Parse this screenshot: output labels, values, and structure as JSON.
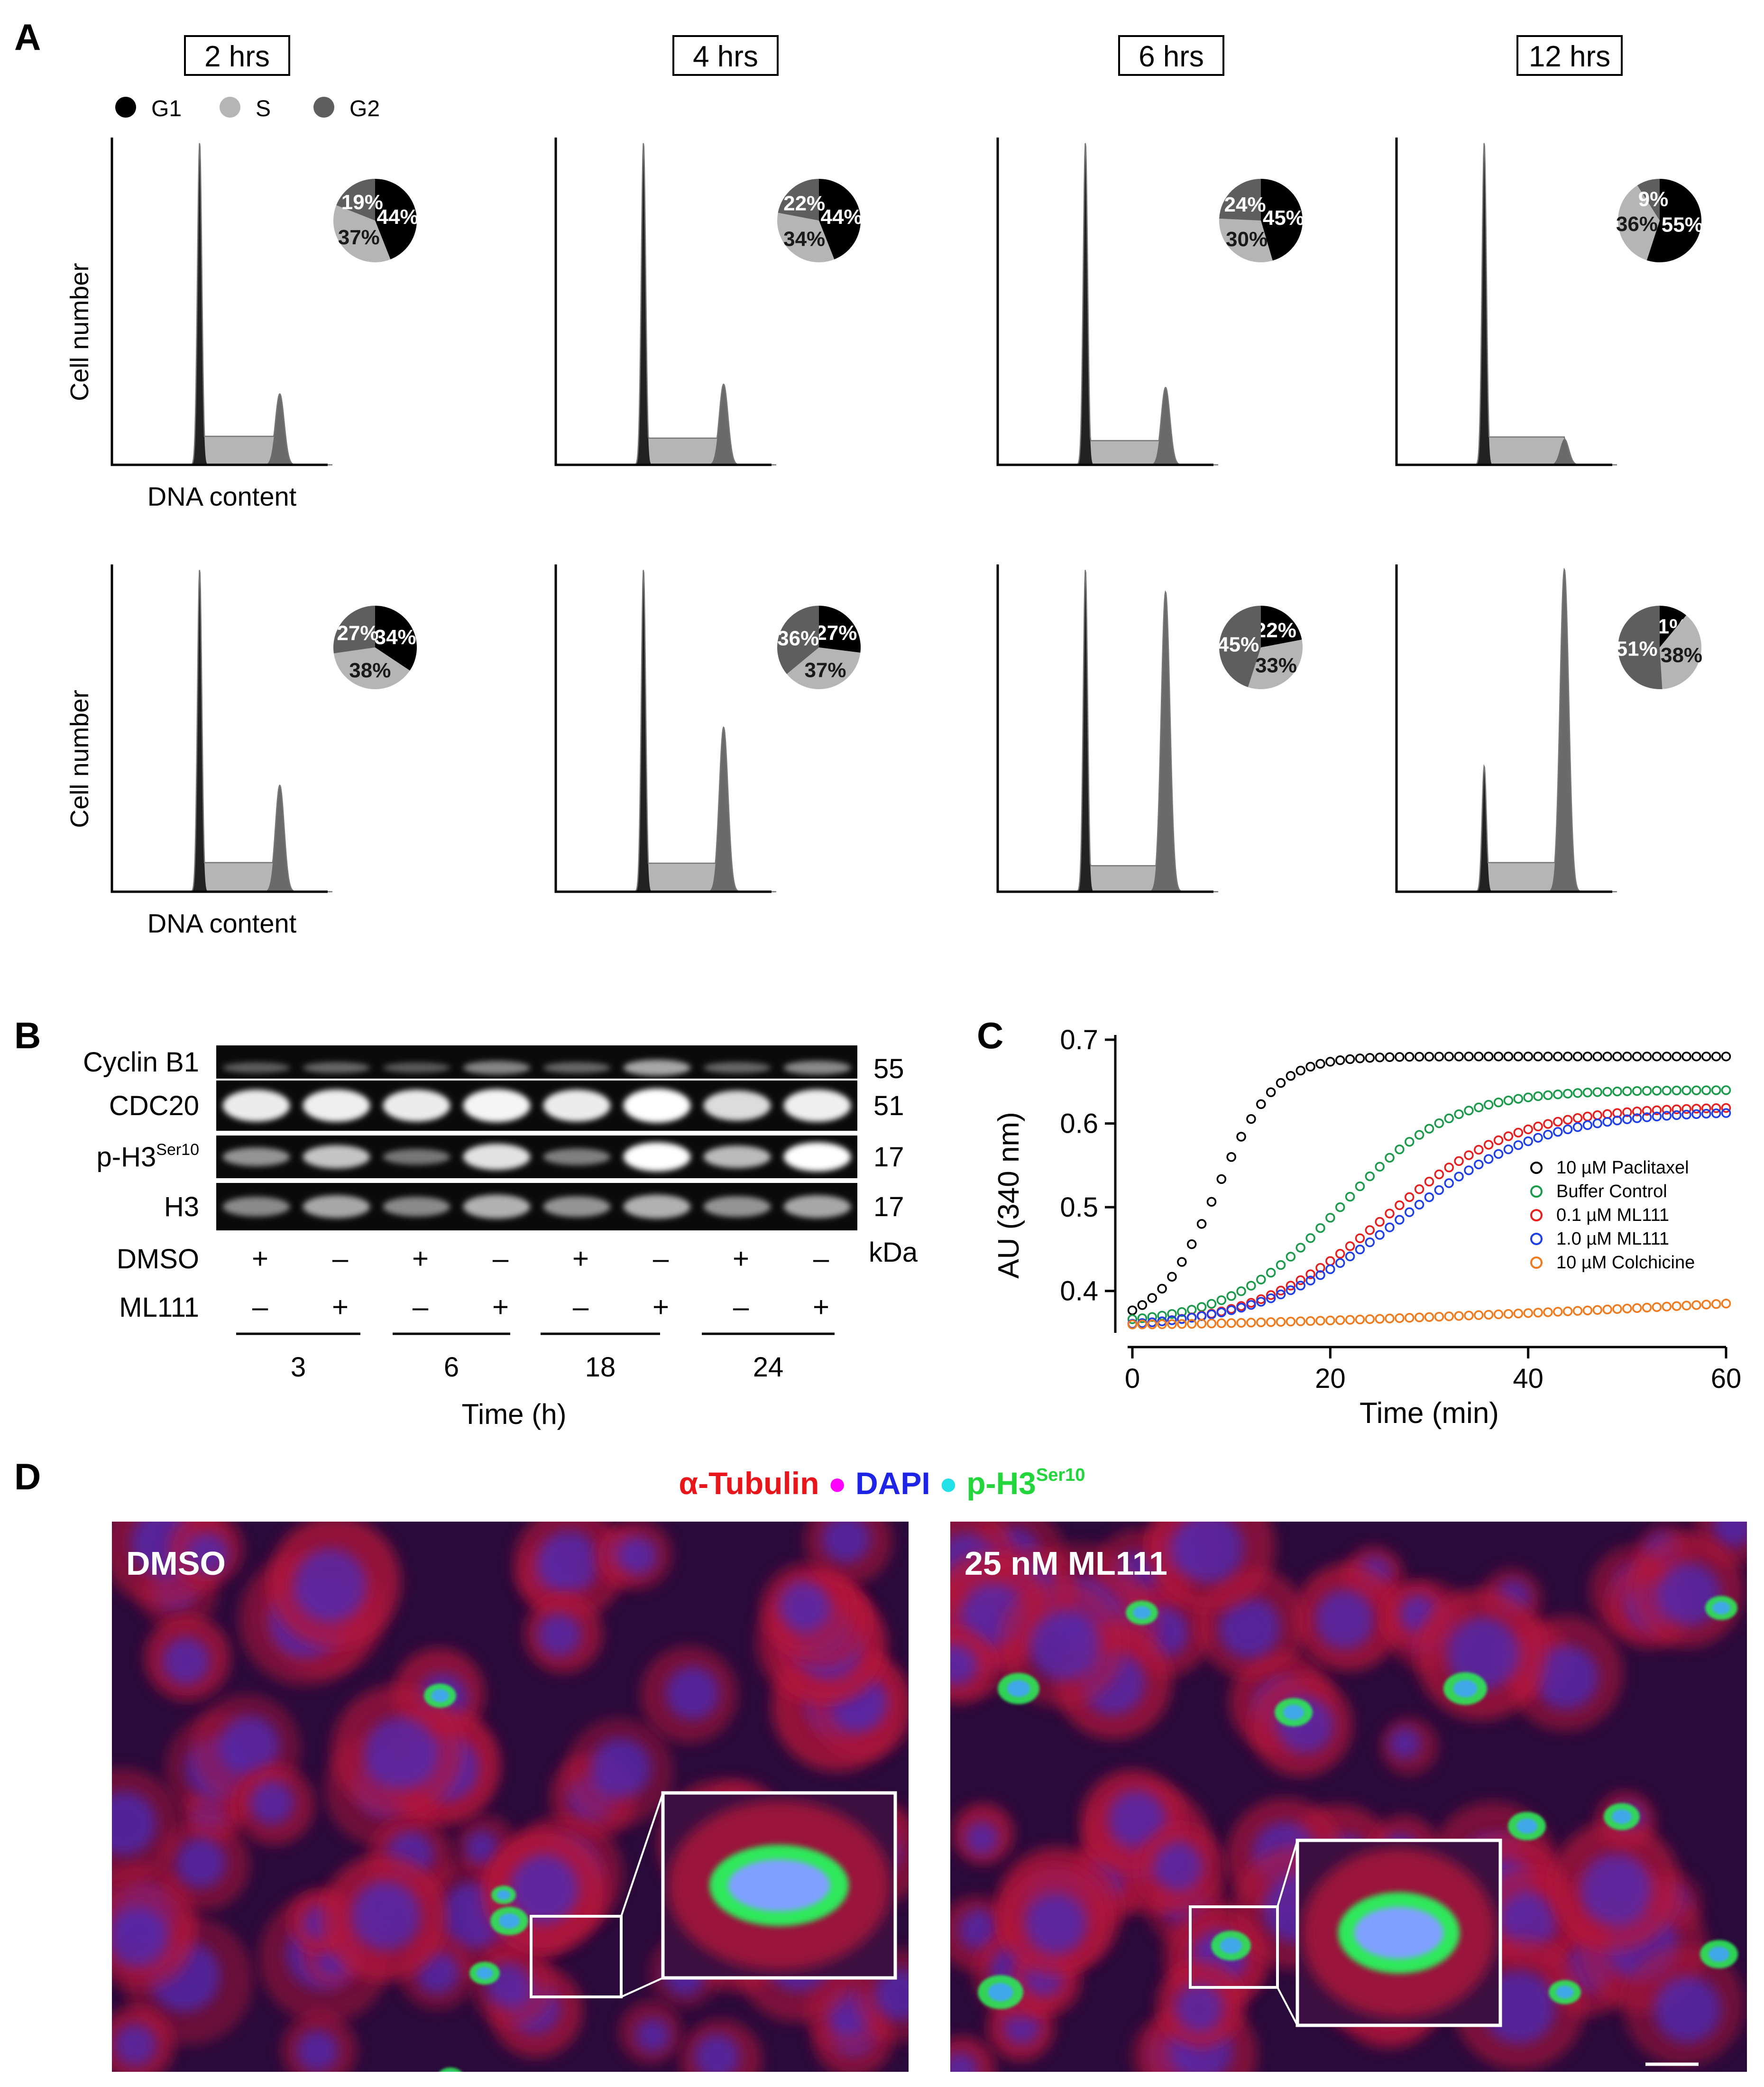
{
  "colors": {
    "G1": "#000000",
    "S": "#b5b5b5",
    "G2": "#5e5e5e",
    "pie_text_dark": "#ffffff",
    "pie_text_light": "#1a1a1a",
    "tubulin": "#e8151b",
    "dapi": "#1d24e6",
    "ph3": "#22d63c",
    "dapi_dot": "#ff00ff",
    "ph3_dot": "#22e0e8",
    "paclitaxel": "#000000",
    "buffer": "#1a9a4a",
    "ml111_01": "#e81e1e",
    "ml111_10": "#1e3ee8",
    "colchicine": "#f07a1e"
  },
  "panel_A": {
    "letter": "A",
    "timepoints": [
      "2 hrs",
      "4 hrs",
      "6 hrs",
      "12 hrs"
    ],
    "legend": [
      "G1",
      "S",
      "G2"
    ],
    "ylabel": "Cell number",
    "xlabel": "DNA content",
    "rows": [
      [
        {
          "G1": 44,
          "S": 37,
          "G2": 19,
          "g1_peak": 1.0,
          "g2_peak": 0.22
        },
        {
          "G1": 44,
          "S": 34,
          "G2": 22,
          "g1_peak": 1.0,
          "g2_peak": 0.25
        },
        {
          "G1": 45,
          "S": 30,
          "G2": 24,
          "g1_peak": 1.0,
          "g2_peak": 0.24
        },
        {
          "G1": 55,
          "S": 36,
          "G2": 9,
          "g1_peak": 1.0,
          "g2_peak": 0.08
        }
      ],
      [
        {
          "G1": 34,
          "S": 38,
          "G2": 27,
          "g1_peak": 1.0,
          "g2_peak": 0.33
        },
        {
          "G1": 27,
          "S": 37,
          "G2": 36,
          "g1_peak": 1.0,
          "g2_peak": 0.51
        },
        {
          "G1": 22,
          "S": 33,
          "G2": 45,
          "g1_peak": 1.0,
          "g2_peak": 0.93
        },
        {
          "G1": 11,
          "S": 38,
          "G2": 51,
          "g1_peak": 0.39,
          "g2_peak": 1.0
        }
      ]
    ]
  },
  "panel_B": {
    "letter": "B",
    "rows": [
      {
        "label": "Cyclin B1",
        "sup": "",
        "kda": "55",
        "intensity": [
          0.18,
          0.22,
          0.16,
          0.38,
          0.22,
          0.55,
          0.22,
          0.4
        ]
      },
      {
        "label": "CDC20",
        "sup": "",
        "kda": "51",
        "intensity": [
          0.9,
          0.92,
          0.9,
          0.95,
          0.9,
          1.0,
          0.82,
          0.92
        ]
      },
      {
        "label": "p-H3",
        "sup": "Ser10",
        "kda": "17",
        "intensity": [
          0.45,
          0.7,
          0.3,
          0.85,
          0.35,
          1.0,
          0.65,
          1.0
        ]
      },
      {
        "label": "H3",
        "sup": "",
        "kda": "17",
        "intensity": [
          0.4,
          0.55,
          0.4,
          0.6,
          0.45,
          0.6,
          0.45,
          0.55
        ]
      }
    ],
    "kda_label": "kDa",
    "treatments": [
      {
        "label": "DMSO",
        "signs": [
          "+",
          "–",
          "+",
          "–",
          "+",
          "–",
          "+",
          "–"
        ]
      },
      {
        "label": "ML111",
        "signs": [
          "–",
          "+",
          "–",
          "+",
          "–",
          "+",
          "–",
          "+"
        ]
      }
    ],
    "times": [
      "3",
      "6",
      "18",
      "24"
    ],
    "xlabel": "Time (h)"
  },
  "panel_C": {
    "letter": "C",
    "chart_data": {
      "type": "scatter",
      "xlabel": "Time (min)",
      "ylabel": "AU (340 nm)",
      "xlim": [
        0,
        60
      ],
      "ylim": [
        0.35,
        0.7
      ],
      "xticks": [
        "0",
        "20",
        "40",
        "60"
      ],
      "yticks": [
        "0.4",
        "0.5",
        "0.6",
        "0.7"
      ],
      "legend_position": "inside-right",
      "series": [
        {
          "name": "10 µM Paclitaxel",
          "color_key": "paclitaxel",
          "model": {
            "base": 0.36,
            "top": 0.68,
            "mid": 8.5,
            "k": 0.34
          }
        },
        {
          "name": "Buffer Control",
          "color_key": "buffer",
          "model": {
            "base": 0.36,
            "top": 0.64,
            "mid": 21.0,
            "k": 0.18
          }
        },
        {
          "name": "0.1 µM ML111",
          "color_key": "ml111_01",
          "model": {
            "base": 0.355,
            "top": 0.62,
            "mid": 25.5,
            "k": 0.15
          }
        },
        {
          "name": "1.0 µM ML111",
          "color_key": "ml111_10",
          "model": {
            "base": 0.355,
            "top": 0.615,
            "mid": 27.0,
            "k": 0.14
          }
        },
        {
          "name": "10 µM Colchicine",
          "color_key": "colchicine",
          "model": {
            "linear": true,
            "start": 0.36,
            "end": 0.385
          }
        }
      ]
    }
  },
  "panel_D": {
    "letter": "D",
    "stain_legend": [
      {
        "text": "α-Tubulin",
        "color_key": "tubulin",
        "dot": "dapi_dot"
      },
      {
        "text": "DAPI",
        "color_key": "dapi",
        "dot": "ph3_dot"
      },
      {
        "text": "p-H3",
        "sup": "Ser10",
        "color_key": "ph3",
        "dot": ""
      }
    ],
    "images": [
      {
        "label": "DMSO",
        "green_fraction": 0.15
      },
      {
        "label": "25 nM ML111",
        "green_fraction": 0.85
      }
    ]
  }
}
